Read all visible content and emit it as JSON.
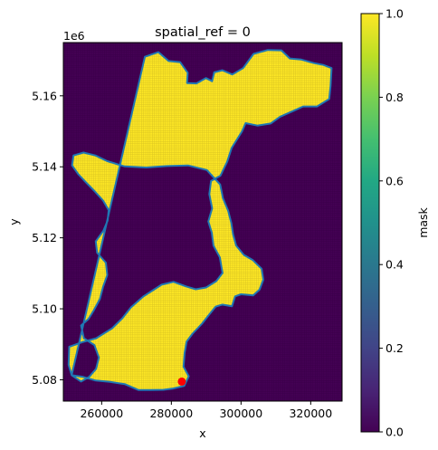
{
  "chart_data": {
    "type": "heatmap",
    "title": "spatial_ref = 0",
    "xlabel": "x",
    "ylabel": "y",
    "y_offset_label": "1e6",
    "xlim": [
      249000,
      329000
    ],
    "ylim": [
      5074000,
      5175000
    ],
    "xticks": [
      260000,
      280000,
      300000,
      320000
    ],
    "xtick_labels": [
      "260000",
      "280000",
      "300000",
      "320000"
    ],
    "yticks": [
      5080000,
      5100000,
      5120000,
      5140000,
      5160000
    ],
    "ytick_labels": [
      "5.08",
      "5.10",
      "5.12",
      "5.14",
      "5.16"
    ],
    "colorbar": {
      "label": "mask",
      "colormap": "viridis",
      "range": [
        0.0,
        1.0
      ],
      "ticks": [
        0.0,
        0.2,
        0.4,
        0.6,
        0.8,
        1.0
      ],
      "tick_labels": [
        "0.0",
        "0.2",
        "0.4",
        "0.6",
        "0.8",
        "1.0"
      ]
    },
    "colors": {
      "mask_0": "#440154",
      "mask_1": "#fde725",
      "boundary": "#1f77b4",
      "point": "#ff0000"
    },
    "boundary": [
      [
        272400,
        5171000
      ],
      [
        276300,
        5172300
      ],
      [
        279200,
        5169800
      ],
      [
        282500,
        5169500
      ],
      [
        284700,
        5166500
      ],
      [
        284500,
        5163600
      ],
      [
        287200,
        5163500
      ],
      [
        289900,
        5165000
      ],
      [
        291700,
        5164100
      ],
      [
        292300,
        5166600
      ],
      [
        294600,
        5167200
      ],
      [
        297500,
        5166000
      ],
      [
        300600,
        5167800
      ],
      [
        303600,
        5171800
      ],
      [
        307700,
        5172900
      ],
      [
        311600,
        5172800
      ],
      [
        314000,
        5170500
      ],
      [
        317300,
        5170200
      ],
      [
        320900,
        5169200
      ],
      [
        323600,
        5168700
      ],
      [
        326000,
        5167800
      ],
      [
        325700,
        5162800
      ],
      [
        325300,
        5159100
      ],
      [
        321800,
        5157000
      ],
      [
        317800,
        5157000
      ],
      [
        314900,
        5155700
      ],
      [
        311200,
        5154100
      ],
      [
        308500,
        5152200
      ],
      [
        304700,
        5151600
      ],
      [
        301300,
        5152300
      ],
      [
        300300,
        5150000
      ],
      [
        297300,
        5145300
      ],
      [
        296000,
        5141400
      ],
      [
        294100,
        5137500
      ],
      [
        291400,
        5136000
      ],
      [
        290900,
        5132300
      ],
      [
        291700,
        5128300
      ],
      [
        290600,
        5124600
      ],
      [
        291600,
        5121500
      ],
      [
        292100,
        5117800
      ],
      [
        293900,
        5114500
      ],
      [
        294700,
        5110100
      ],
      [
        292900,
        5107800
      ],
      [
        290000,
        5106000
      ],
      [
        287000,
        5105500
      ],
      [
        284300,
        5106300
      ],
      [
        280600,
        5107600
      ],
      [
        277200,
        5106800
      ],
      [
        275000,
        5105400
      ],
      [
        272000,
        5103500
      ],
      [
        268400,
        5100400
      ],
      [
        266000,
        5097400
      ],
      [
        263000,
        5094500
      ],
      [
        258400,
        5091700
      ],
      [
        254400,
        5090600
      ],
      [
        250700,
        5089300
      ],
      [
        250500,
        5084200
      ],
      [
        251400,
        5081300
      ],
      [
        254700,
        5080800
      ],
      [
        258300,
        5079800
      ],
      [
        262400,
        5079400
      ],
      [
        266600,
        5078800
      ],
      [
        270600,
        5077100
      ],
      [
        273900,
        5077100
      ],
      [
        277700,
        5077200
      ],
      [
        280300,
        5077500
      ],
      [
        283700,
        5078300
      ],
      [
        285000,
        5081000
      ],
      [
        283500,
        5083700
      ],
      [
        283800,
        5087600
      ],
      [
        284400,
        5090800
      ],
      [
        286100,
        5093000
      ],
      [
        288800,
        5095800
      ],
      [
        290800,
        5098300
      ],
      [
        292700,
        5100600
      ],
      [
        294600,
        5101200
      ],
      [
        297400,
        5100700
      ],
      [
        298300,
        5103500
      ],
      [
        300000,
        5104100
      ],
      [
        303500,
        5103800
      ],
      [
        305300,
        5105400
      ],
      [
        306400,
        5108200
      ],
      [
        305900,
        5111300
      ],
      [
        303400,
        5113700
      ],
      [
        300800,
        5115200
      ],
      [
        298600,
        5117800
      ],
      [
        297700,
        5121000
      ],
      [
        297200,
        5124200
      ],
      [
        296300,
        5127600
      ],
      [
        294800,
        5131200
      ],
      [
        294000,
        5135000
      ],
      [
        290200,
        5139100
      ],
      [
        284800,
        5140400
      ],
      [
        278800,
        5140200
      ],
      [
        272800,
        5139800
      ],
      [
        266600,
        5140100
      ],
      [
        261600,
        5141600
      ],
      [
        258200,
        5143200
      ],
      [
        254800,
        5144000
      ],
      [
        251900,
        5143200
      ],
      [
        251500,
        5140400
      ],
      [
        253300,
        5137900
      ],
      [
        255300,
        5135800
      ],
      [
        257800,
        5133300
      ],
      [
        260400,
        5130500
      ],
      [
        262000,
        5127800
      ],
      [
        261700,
        5124800
      ],
      [
        260500,
        5122000
      ],
      [
        258300,
        5119000
      ],
      [
        258700,
        5115800
      ],
      [
        261200,
        5113000
      ],
      [
        261600,
        5109500
      ],
      [
        260400,
        5106200
      ],
      [
        259500,
        5102800
      ],
      [
        257700,
        5099500
      ],
      [
        256200,
        5097100
      ],
      [
        254100,
        5095300
      ],
      [
        254900,
        5091700
      ],
      [
        257900,
        5089800
      ],
      [
        259200,
        5086300
      ],
      [
        258400,
        5083100
      ],
      [
        256400,
        5080800
      ],
      [
        254100,
        5079500
      ],
      [
        251400,
        5081300
      ]
    ],
    "point": {
      "x": 283000,
      "y": 5079500
    }
  }
}
